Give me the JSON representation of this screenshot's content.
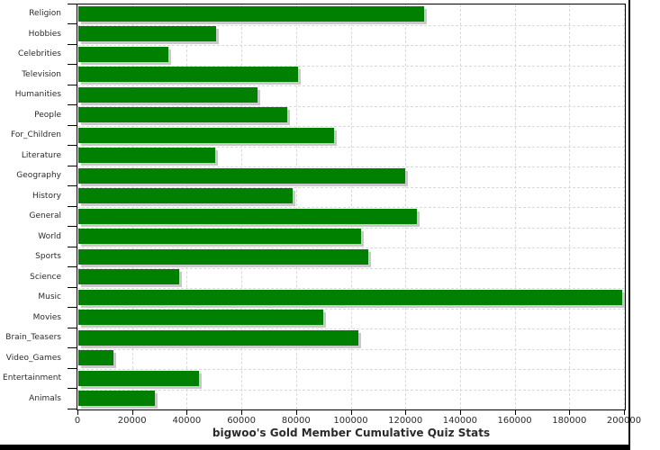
{
  "chart_data": {
    "type": "bar",
    "orientation": "horizontal",
    "title": "bigwoo's Gold Member Cumulative Quiz Stats",
    "xlabel": "",
    "ylabel": "",
    "categories": [
      "Religion",
      "Hobbies",
      "Celebrities",
      "Television",
      "Humanities",
      "People",
      "For_Children",
      "Literature",
      "Geography",
      "History",
      "General",
      "World",
      "Sports",
      "Science",
      "Music",
      "Movies",
      "Brain_Teasers",
      "Video_Games",
      "Entertainment",
      "Animals"
    ],
    "values": [
      126500,
      50500,
      33000,
      80500,
      65500,
      76500,
      93500,
      50000,
      119500,
      78500,
      124000,
      103500,
      106000,
      37000,
      199000,
      89500,
      102500,
      13000,
      44000,
      28000
    ],
    "xlim": [
      0,
      200000
    ],
    "x_tick_labels": [
      "0",
      "20000",
      "40000",
      "60000",
      "80000",
      "100000",
      "120000",
      "140000",
      "160000",
      "180000",
      "200000"
    ],
    "grid": true,
    "legend": "none",
    "colors": {
      "bar": "#008000",
      "bar_shadow": "#c9c9c9",
      "gridline": "#d9d9d9",
      "axis": "#000000",
      "text": "#2b2b2b",
      "screen_edge": "#000000"
    }
  }
}
